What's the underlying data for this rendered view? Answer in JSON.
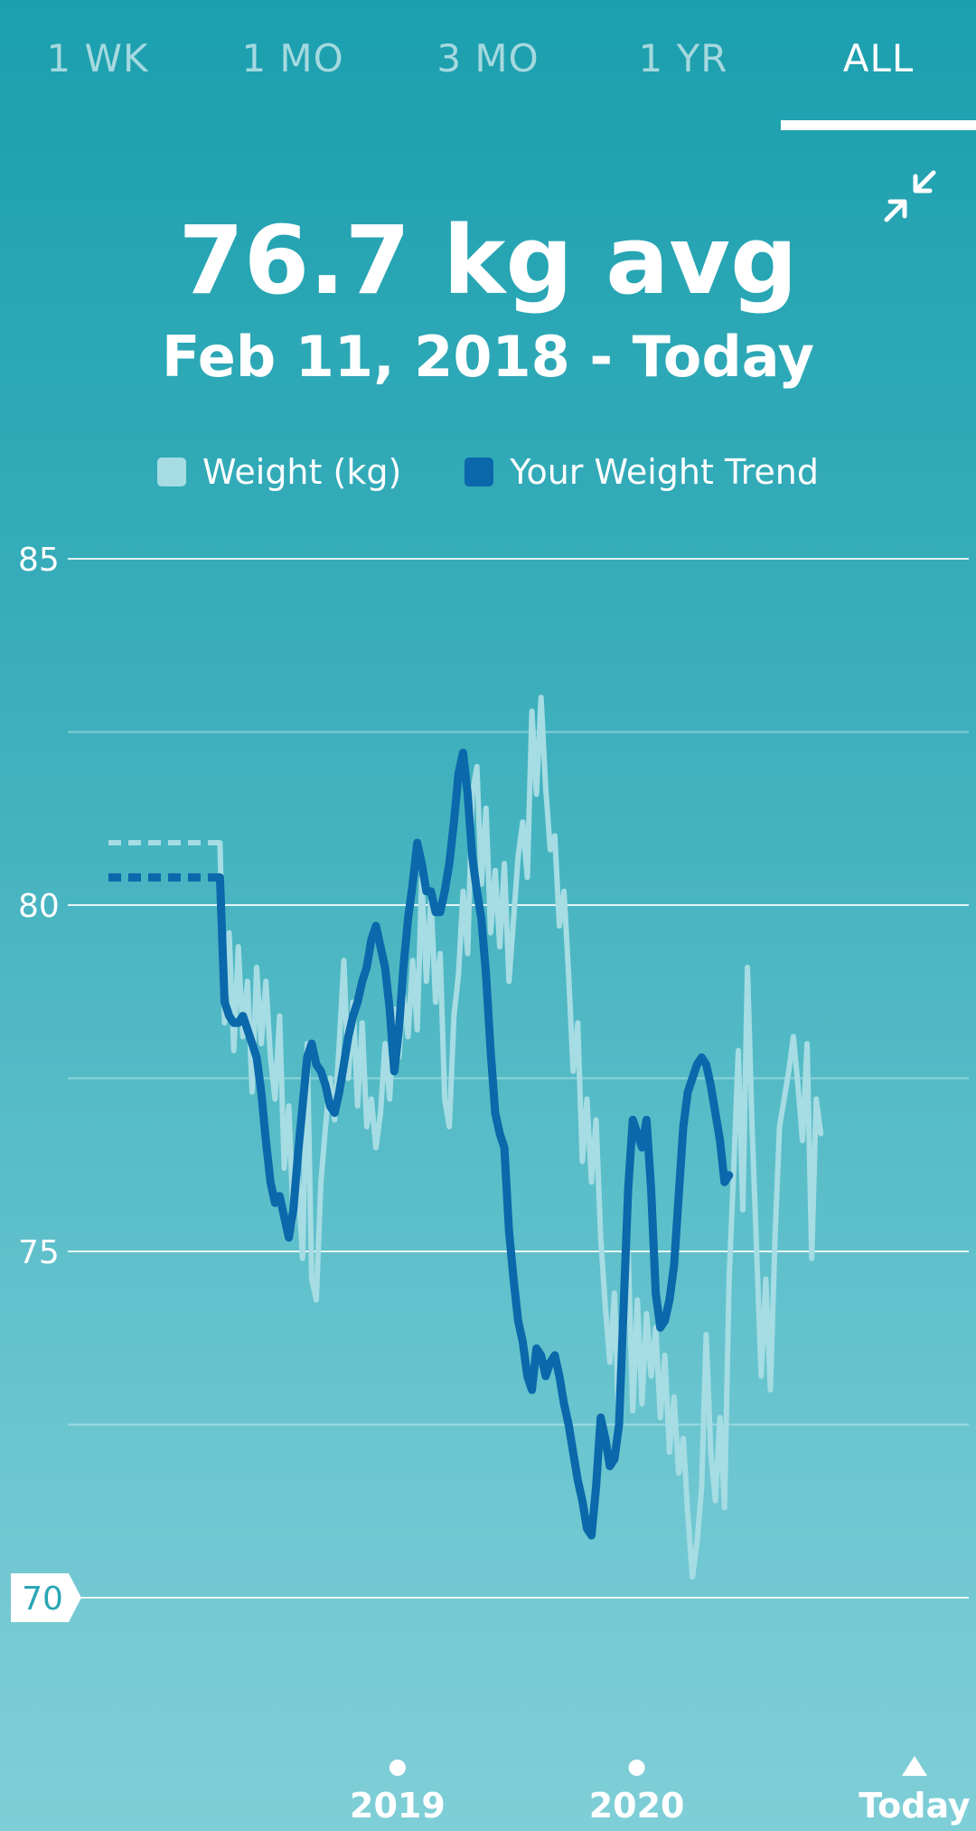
{
  "tabs": [
    {
      "label": "1 WK",
      "active": false
    },
    {
      "label": "1 MO",
      "active": false
    },
    {
      "label": "3 MO",
      "active": false
    },
    {
      "label": "1 YR",
      "active": false
    },
    {
      "label": "ALL",
      "active": true
    }
  ],
  "header": {
    "average": "76.7 kg avg",
    "date_range": "Feb 11, 2018 - Today",
    "collapse_icon": "collapse-arrows-icon"
  },
  "colors": {
    "weight": "#a6dce3",
    "trend": "#0a68ab",
    "background_top": "#1b9fae",
    "background_bottom": "#7fced7",
    "goal_label_text": "#2aa6b4"
  },
  "chart_data": {
    "type": "line",
    "x_unit": "date",
    "xlim": [
      "2018-02-11",
      "2021-02-28"
    ],
    "ylim": [
      70,
      85
    ],
    "yticks": [
      70,
      75,
      80,
      85
    ],
    "minor_gridlines": [
      72.5,
      77.5,
      82.5
    ],
    "grid": true,
    "highlighted_ytick": 70,
    "x_ticks": [
      {
        "date": "2019-01-01",
        "label": "2019",
        "marker": "dot"
      },
      {
        "date": "2020-01-01",
        "label": "2020",
        "marker": "dot"
      },
      {
        "date": "2021-02-28",
        "label": "Today",
        "marker": "triangle"
      }
    ],
    "series": [
      {
        "name": "Weight (kg)",
        "style": "spiky-light",
        "pre_period_value": 80.9,
        "points": [
          [
            "2018-04-05",
            80.9
          ],
          [
            "2018-04-12",
            78.3
          ],
          [
            "2018-04-19",
            79.6
          ],
          [
            "2018-04-26",
            77.9
          ],
          [
            "2018-05-03",
            79.4
          ],
          [
            "2018-05-10",
            78.1
          ],
          [
            "2018-05-17",
            78.9
          ],
          [
            "2018-05-24",
            77.3
          ],
          [
            "2018-05-31",
            79.1
          ],
          [
            "2018-06-07",
            78.0
          ],
          [
            "2018-06-14",
            78.9
          ],
          [
            "2018-06-21",
            77.8
          ],
          [
            "2018-06-28",
            77.2
          ],
          [
            "2018-07-05",
            78.4
          ],
          [
            "2018-07-12",
            76.2
          ],
          [
            "2018-07-19",
            77.1
          ],
          [
            "2018-07-26",
            75.4
          ],
          [
            "2018-08-02",
            76.1
          ],
          [
            "2018-08-09",
            74.9
          ],
          [
            "2018-08-16",
            78.0
          ],
          [
            "2018-08-23",
            74.6
          ],
          [
            "2018-08-30",
            74.3
          ],
          [
            "2018-09-06",
            76.0
          ],
          [
            "2018-09-13",
            76.8
          ],
          [
            "2018-09-20",
            77.5
          ],
          [
            "2018-09-27",
            76.9
          ],
          [
            "2018-10-04",
            78.0
          ],
          [
            "2018-10-11",
            79.2
          ],
          [
            "2018-10-18",
            77.5
          ],
          [
            "2018-10-25",
            78.6
          ],
          [
            "2018-11-01",
            77.1
          ],
          [
            "2018-11-08",
            78.3
          ],
          [
            "2018-11-15",
            76.8
          ],
          [
            "2018-11-22",
            77.2
          ],
          [
            "2018-11-29",
            76.5
          ],
          [
            "2018-12-06",
            77.0
          ],
          [
            "2018-12-13",
            78.0
          ],
          [
            "2018-12-20",
            77.2
          ],
          [
            "2018-12-27",
            78.5
          ],
          [
            "2019-01-03",
            77.8
          ],
          [
            "2019-01-10",
            78.7
          ],
          [
            "2019-01-17",
            78.1
          ],
          [
            "2019-01-24",
            79.2
          ],
          [
            "2019-01-31",
            78.2
          ],
          [
            "2019-02-07",
            80.4
          ],
          [
            "2019-02-14",
            78.9
          ],
          [
            "2019-02-21",
            80.1
          ],
          [
            "2019-02-28",
            78.6
          ],
          [
            "2019-03-07",
            79.3
          ],
          [
            "2019-03-14",
            77.2
          ],
          [
            "2019-03-21",
            76.8
          ],
          [
            "2019-03-28",
            78.4
          ],
          [
            "2019-04-04",
            79.0
          ],
          [
            "2019-04-11",
            80.2
          ],
          [
            "2019-04-18",
            79.3
          ],
          [
            "2019-04-25",
            81.6
          ],
          [
            "2019-05-02",
            82.0
          ],
          [
            "2019-05-09",
            80.3
          ],
          [
            "2019-05-16",
            81.4
          ],
          [
            "2019-05-23",
            79.6
          ],
          [
            "2019-05-30",
            80.5
          ],
          [
            "2019-06-06",
            79.4
          ],
          [
            "2019-06-13",
            80.6
          ],
          [
            "2019-06-20",
            78.9
          ],
          [
            "2019-06-27",
            79.8
          ],
          [
            "2019-07-04",
            80.7
          ],
          [
            "2019-07-11",
            81.2
          ],
          [
            "2019-07-18",
            80.4
          ],
          [
            "2019-07-25",
            82.8
          ],
          [
            "2019-08-01",
            81.6
          ],
          [
            "2019-08-08",
            83.0
          ],
          [
            "2019-08-15",
            81.7
          ],
          [
            "2019-08-22",
            80.8
          ],
          [
            "2019-08-29",
            81.0
          ],
          [
            "2019-09-05",
            79.7
          ],
          [
            "2019-09-12",
            80.2
          ],
          [
            "2019-09-19",
            79.0
          ],
          [
            "2019-09-26",
            77.6
          ],
          [
            "2019-10-03",
            78.3
          ],
          [
            "2019-10-10",
            76.3
          ],
          [
            "2019-10-17",
            77.2
          ],
          [
            "2019-10-24",
            76.0
          ],
          [
            "2019-10-31",
            76.9
          ],
          [
            "2019-11-07",
            75.2
          ],
          [
            "2019-11-14",
            74.2
          ],
          [
            "2019-11-21",
            73.4
          ],
          [
            "2019-11-28",
            74.4
          ],
          [
            "2019-12-05",
            72.4
          ],
          [
            "2019-12-12",
            73.6
          ],
          [
            "2019-12-19",
            75.0
          ],
          [
            "2019-12-26",
            72.7
          ],
          [
            "2020-01-02",
            74.3
          ],
          [
            "2020-01-09",
            72.8
          ],
          [
            "2020-01-16",
            74.1
          ],
          [
            "2020-01-23",
            73.2
          ],
          [
            "2020-01-30",
            73.9
          ],
          [
            "2020-02-06",
            72.6
          ],
          [
            "2020-02-13",
            73.5
          ],
          [
            "2020-02-20",
            72.1
          ],
          [
            "2020-02-27",
            72.9
          ],
          [
            "2020-03-05",
            71.8
          ],
          [
            "2020-03-12",
            72.3
          ],
          [
            "2020-03-19",
            71.2
          ],
          [
            "2020-03-26",
            70.3
          ],
          [
            "2020-04-02",
            70.8
          ],
          [
            "2020-04-09",
            71.6
          ],
          [
            "2020-04-16",
            73.8
          ],
          [
            "2020-04-23",
            72.1
          ],
          [
            "2020-04-30",
            71.4
          ],
          [
            "2020-05-07",
            72.6
          ],
          [
            "2020-05-14",
            71.3
          ],
          [
            "2020-05-21",
            74.6
          ],
          [
            "2020-05-28",
            76.2
          ],
          [
            "2020-06-04",
            77.9
          ],
          [
            "2020-06-11",
            75.6
          ],
          [
            "2020-06-18",
            79.1
          ],
          [
            "2020-06-25",
            76.8
          ],
          [
            "2020-07-02",
            75.0
          ],
          [
            "2020-07-09",
            73.2
          ],
          [
            "2020-07-16",
            74.6
          ],
          [
            "2020-07-23",
            73.0
          ],
          [
            "2020-07-30",
            75.2
          ],
          [
            "2020-08-06",
            76.8
          ],
          [
            "2020-08-13",
            77.2
          ],
          [
            "2020-08-20",
            77.6
          ],
          [
            "2020-08-27",
            78.1
          ],
          [
            "2020-09-03",
            77.4
          ],
          [
            "2020-09-10",
            76.6
          ],
          [
            "2020-09-17",
            78.0
          ],
          [
            "2020-09-24",
            74.9
          ],
          [
            "2020-10-01",
            77.2
          ],
          [
            "2020-10-08",
            76.7
          ]
        ]
      },
      {
        "name": "Your Weight Trend",
        "style": "smooth-thick",
        "pre_period_value": 80.4,
        "points": [
          [
            "2018-04-05",
            80.4
          ],
          [
            "2018-04-12",
            78.6
          ],
          [
            "2018-04-19",
            78.4
          ],
          [
            "2018-04-26",
            78.3
          ],
          [
            "2018-05-03",
            78.3
          ],
          [
            "2018-05-10",
            78.4
          ],
          [
            "2018-05-17",
            78.2
          ],
          [
            "2018-05-24",
            78.0
          ],
          [
            "2018-05-31",
            77.8
          ],
          [
            "2018-06-07",
            77.3
          ],
          [
            "2018-06-14",
            76.6
          ],
          [
            "2018-06-21",
            76.0
          ],
          [
            "2018-06-28",
            75.7
          ],
          [
            "2018-07-05",
            75.8
          ],
          [
            "2018-07-12",
            75.5
          ],
          [
            "2018-07-19",
            75.2
          ],
          [
            "2018-07-26",
            75.6
          ],
          [
            "2018-08-02",
            76.4
          ],
          [
            "2018-08-09",
            77.1
          ],
          [
            "2018-08-16",
            77.8
          ],
          [
            "2018-08-23",
            78.0
          ],
          [
            "2018-08-30",
            77.7
          ],
          [
            "2018-09-06",
            77.6
          ],
          [
            "2018-09-13",
            77.4
          ],
          [
            "2018-09-20",
            77.1
          ],
          [
            "2018-09-27",
            77.0
          ],
          [
            "2018-10-04",
            77.3
          ],
          [
            "2018-10-11",
            77.7
          ],
          [
            "2018-10-18",
            78.1
          ],
          [
            "2018-10-25",
            78.4
          ],
          [
            "2018-11-01",
            78.6
          ],
          [
            "2018-11-08",
            78.9
          ],
          [
            "2018-11-15",
            79.1
          ],
          [
            "2018-11-22",
            79.5
          ],
          [
            "2018-11-29",
            79.7
          ],
          [
            "2018-12-06",
            79.4
          ],
          [
            "2018-12-13",
            79.1
          ],
          [
            "2018-12-20",
            78.5
          ],
          [
            "2018-12-27",
            77.6
          ],
          [
            "2019-01-03",
            78.2
          ],
          [
            "2019-01-10",
            79.1
          ],
          [
            "2019-01-17",
            79.8
          ],
          [
            "2019-01-24",
            80.3
          ],
          [
            "2019-01-31",
            80.9
          ],
          [
            "2019-02-07",
            80.6
          ],
          [
            "2019-02-14",
            80.2
          ],
          [
            "2019-02-21",
            80.2
          ],
          [
            "2019-02-28",
            79.9
          ],
          [
            "2019-03-07",
            79.9
          ],
          [
            "2019-03-14",
            80.2
          ],
          [
            "2019-03-21",
            80.6
          ],
          [
            "2019-03-28",
            81.2
          ],
          [
            "2019-04-04",
            81.9
          ],
          [
            "2019-04-11",
            82.2
          ],
          [
            "2019-04-18",
            81.6
          ],
          [
            "2019-04-25",
            80.7
          ],
          [
            "2019-05-02",
            80.2
          ],
          [
            "2019-05-09",
            79.8
          ],
          [
            "2019-05-16",
            79.0
          ],
          [
            "2019-05-23",
            77.9
          ],
          [
            "2019-05-30",
            77.0
          ],
          [
            "2019-06-06",
            76.7
          ],
          [
            "2019-06-13",
            76.5
          ],
          [
            "2019-06-20",
            75.3
          ],
          [
            "2019-06-27",
            74.6
          ],
          [
            "2019-07-04",
            74.0
          ],
          [
            "2019-07-11",
            73.7
          ],
          [
            "2019-07-18",
            73.2
          ],
          [
            "2019-07-25",
            73.0
          ],
          [
            "2019-08-01",
            73.6
          ],
          [
            "2019-08-08",
            73.5
          ],
          [
            "2019-08-15",
            73.2
          ],
          [
            "2019-08-22",
            73.4
          ],
          [
            "2019-08-29",
            73.5
          ],
          [
            "2019-09-05",
            73.2
          ],
          [
            "2019-09-12",
            72.8
          ],
          [
            "2019-09-19",
            72.5
          ],
          [
            "2019-09-26",
            72.1
          ],
          [
            "2019-10-03",
            71.7
          ],
          [
            "2019-10-10",
            71.4
          ],
          [
            "2019-10-17",
            71.0
          ],
          [
            "2019-10-24",
            70.9
          ],
          [
            "2019-10-31",
            71.6
          ],
          [
            "2019-11-07",
            72.6
          ],
          [
            "2019-11-14",
            72.3
          ],
          [
            "2019-11-21",
            71.9
          ],
          [
            "2019-11-28",
            72.0
          ],
          [
            "2019-12-05",
            72.5
          ],
          [
            "2019-12-12",
            74.2
          ],
          [
            "2019-12-19",
            75.9
          ],
          [
            "2019-12-26",
            76.9
          ],
          [
            "2020-01-02",
            76.7
          ],
          [
            "2020-01-09",
            76.5
          ],
          [
            "2020-01-16",
            76.9
          ],
          [
            "2020-01-23",
            75.9
          ],
          [
            "2020-01-30",
            74.4
          ],
          [
            "2020-02-06",
            73.9
          ],
          [
            "2020-02-13",
            74.0
          ],
          [
            "2020-02-20",
            74.3
          ],
          [
            "2020-02-27",
            74.8
          ],
          [
            "2020-03-05",
            75.8
          ],
          [
            "2020-03-12",
            76.8
          ],
          [
            "2020-03-19",
            77.3
          ],
          [
            "2020-03-26",
            77.5
          ],
          [
            "2020-04-02",
            77.7
          ],
          [
            "2020-04-09",
            77.8
          ],
          [
            "2020-04-16",
            77.7
          ],
          [
            "2020-04-23",
            77.4
          ],
          [
            "2020-04-30",
            77.0
          ],
          [
            "2020-05-07",
            76.6
          ],
          [
            "2020-05-14",
            76.0
          ],
          [
            "2020-05-21",
            76.1
          ]
        ]
      }
    ],
    "x_tick_labels": [
      "2019",
      "2020",
      "Today"
    ]
  }
}
